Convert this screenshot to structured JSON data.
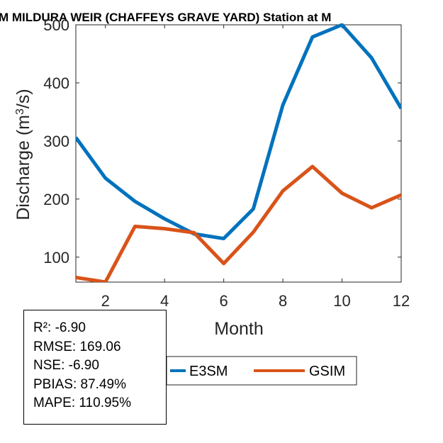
{
  "chart_data": {
    "type": "line",
    "title": "M MILDURA WEIR (CHAFFEYS GRAVE YARD)  Station at  M",
    "xlabel": "Month",
    "ylabel_main": "Discharge (m",
    "ylabel_sup": "3",
    "ylabel_end": "/s)",
    "xlim": [
      1,
      12
    ],
    "ylim": [
      57,
      500
    ],
    "x_ticks": [
      2,
      4,
      6,
      8,
      10,
      12
    ],
    "y_ticks": [
      100,
      200,
      300,
      400,
      500
    ],
    "x": [
      1,
      2,
      3,
      4,
      5,
      6,
      7,
      8,
      9,
      10,
      11,
      12
    ],
    "series": [
      {
        "name": "E3SM",
        "color": "#0072BD",
        "values": [
          306,
          236,
          196,
          166,
          140,
          132,
          183,
          362,
          479,
          500,
          443,
          356
        ]
      },
      {
        "name": "GSIM",
        "color": "#D95319",
        "values": [
          65,
          57,
          153,
          149,
          142,
          89,
          143,
          214,
          256,
          210,
          185,
          207
        ]
      }
    ],
    "legend_position": "bottom",
    "grid": false
  },
  "stats": {
    "lines": [
      "R²: -6.90",
      "RMSE: 169.06",
      "NSE: -6.90",
      "PBIAS: 87.49%",
      "MAPE: 110.95%"
    ]
  }
}
